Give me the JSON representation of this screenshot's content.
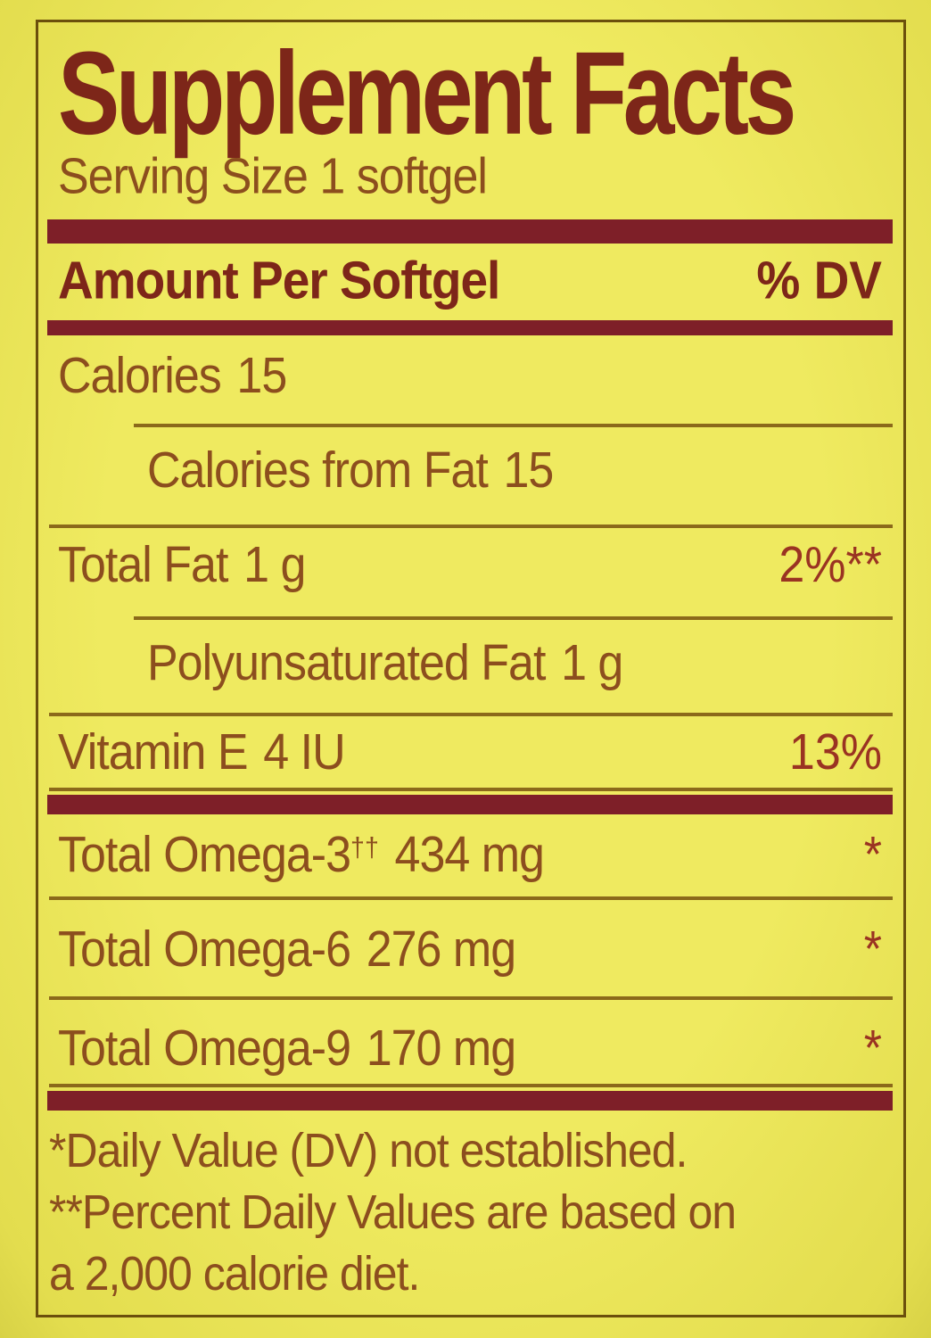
{
  "colors": {
    "background": "#EAE455",
    "title": "#7D2619",
    "bar": "#7E1F28",
    "text": "#8C4E1E",
    "value": "#9A3322",
    "hairline": "#8B691A",
    "border": "#6B4F0C"
  },
  "label": {
    "title": "Supplement Facts",
    "serving_size": "Serving Size 1 softgel",
    "column_header": {
      "left": "Amount Per Softgel",
      "right": "% DV"
    },
    "rows": [
      {
        "name": "Calories",
        "sup": "",
        "amount": "15",
        "dv": ""
      },
      {
        "name": "Calories from Fat",
        "sup": "",
        "amount": "15",
        "dv": ""
      },
      {
        "name": "Total Fat",
        "sup": "",
        "amount": "1 g",
        "dv": "2%**"
      },
      {
        "name": "Polyunsaturated Fat",
        "sup": "",
        "amount": "1 g",
        "dv": ""
      },
      {
        "name": "Vitamin E",
        "sup": "",
        "amount": "4 IU",
        "dv": "13%"
      },
      {
        "name": "Total Omega-3",
        "sup": "††",
        "amount": "434 mg",
        "dv": "*"
      },
      {
        "name": "Total Omega-6",
        "sup": "",
        "amount": "276 mg",
        "dv": "*"
      },
      {
        "name": "Total Omega-9",
        "sup": "",
        "amount": "170 mg",
        "dv": "*"
      }
    ],
    "footnotes": [
      "*Daily Value (DV) not established.",
      "**Percent Daily Values are based on",
      "a 2,000 calorie diet."
    ]
  }
}
